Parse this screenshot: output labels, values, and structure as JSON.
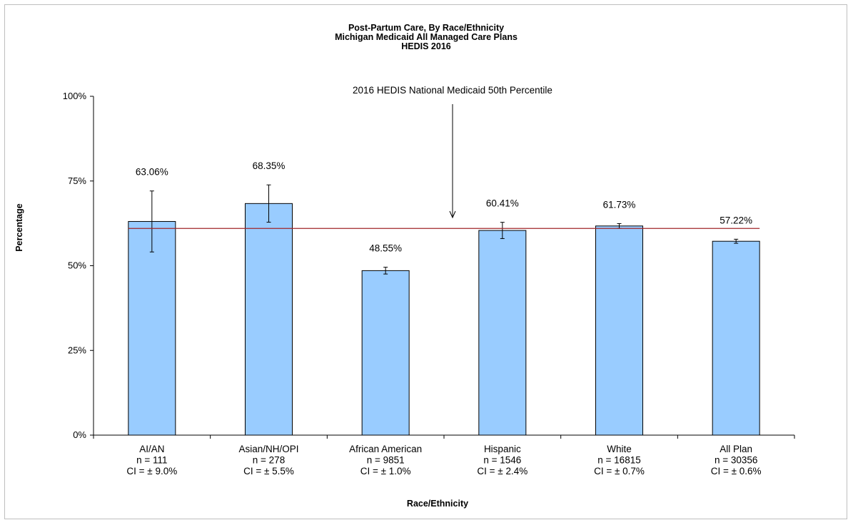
{
  "chart_data": {
    "type": "bar",
    "title": [
      "Post-Partum Care, By Race/Ethnicity",
      "Michigan Medicaid All Managed Care Plans",
      "HEDIS 2016"
    ],
    "xlabel": "Race/Ethnicity",
    "ylabel": "Percentage",
    "ylim": [
      0,
      100
    ],
    "yticks": [
      0,
      25,
      50,
      75,
      100
    ],
    "ytick_labels": [
      "0%",
      "25%",
      "50%",
      "75%",
      "100%"
    ],
    "categories": [
      {
        "name": "AI/AN",
        "n": "n = 111",
        "ci": "CI =  ± 9.0%"
      },
      {
        "name": "Asian/NH/OPI",
        "n": "n = 278",
        "ci": "CI =  ± 5.5%"
      },
      {
        "name": "African American",
        "n": "n = 9851",
        "ci": "CI =  ± 1.0%"
      },
      {
        "name": "Hispanic",
        "n": "n = 1546",
        "ci": "CI =  ± 2.4%"
      },
      {
        "name": "White",
        "n": "n = 16815",
        "ci": "CI =  ± 0.7%"
      },
      {
        "name": "All Plan",
        "n": "n = 30356",
        "ci": "CI =  ± 0.6%"
      }
    ],
    "values": [
      63.06,
      68.35,
      48.55,
      60.41,
      61.73,
      57.22
    ],
    "value_labels": [
      "63.06%",
      "68.35%",
      "48.55%",
      "60.41%",
      "61.73%",
      "57.22%"
    ],
    "ci_halfwidth": [
      9.0,
      5.5,
      1.0,
      2.4,
      0.7,
      0.6
    ],
    "reference_line": {
      "label": "2016 HEDIS National Medicaid 50th Percentile",
      "value": 61,
      "color": "#a0262a"
    },
    "bar_color": "#99ccff",
    "grid": false
  }
}
